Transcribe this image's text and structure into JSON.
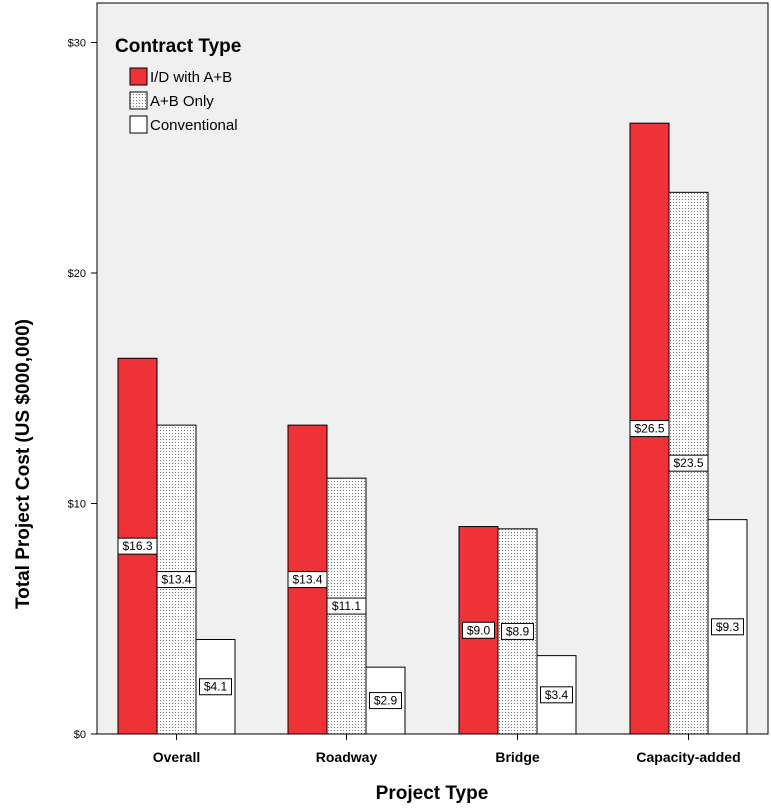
{
  "chart_data": {
    "type": "bar",
    "xlabel": "Project Type",
    "ylabel": "Total Project Cost (US $000,000)",
    "ylim": [
      0,
      31
    ],
    "yticks": [
      0,
      10,
      20,
      30
    ],
    "ytick_labels": [
      "$0",
      "$10",
      "$20",
      "$30"
    ],
    "categories": [
      "Overall",
      "Roadway",
      "Bridge",
      "Capacity-added"
    ],
    "legend": {
      "title": "Contract Type",
      "placement": "top-left"
    },
    "grid": false,
    "series": [
      {
        "name": "I/D with A+B",
        "color": "#ee3238",
        "pattern": "solid",
        "values": [
          16.3,
          13.4,
          9.0,
          26.5
        ],
        "labels": [
          "$16.3",
          "$13.4",
          "$9.0",
          "$26.5"
        ]
      },
      {
        "name": "A+B Only",
        "color": "#ffffff",
        "pattern": "dotted",
        "values": [
          13.4,
          11.1,
          8.9,
          23.5
        ],
        "labels": [
          "$13.4",
          "$11.1",
          "$8.9",
          "$23.5"
        ]
      },
      {
        "name": "Conventional",
        "color": "#ffffff",
        "pattern": "none",
        "values": [
          4.1,
          2.9,
          3.4,
          9.3
        ],
        "labels": [
          "$4.1",
          "$2.9",
          "$3.4",
          "$9.3"
        ]
      }
    ]
  },
  "colors": {
    "plot_background": "#f0f0f0",
    "axis": "#000000"
  }
}
